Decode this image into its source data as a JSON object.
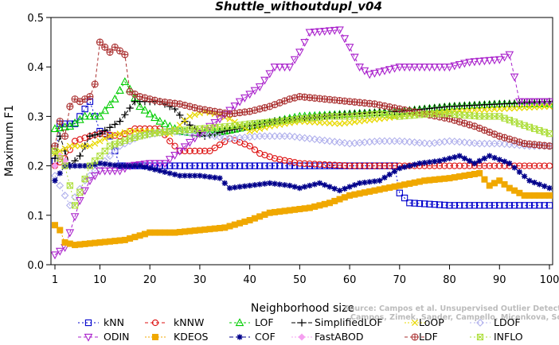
{
  "chart_data": {
    "type": "line",
    "title": "Shuttle_withoutdupl_v04",
    "xlabel": "Neighborhood size",
    "ylabel": "Maximum F1",
    "xlim": [
      1,
      100
    ],
    "ylim": [
      0.0,
      0.5
    ],
    "xticks": [
      1,
      10,
      20,
      30,
      40,
      50,
      60,
      70,
      80,
      90,
      100
    ],
    "yticks": [
      0.0,
      0.1,
      0.2,
      0.3,
      0.4,
      0.5
    ],
    "xtick_labels": [
      "1",
      "10",
      "20",
      "30",
      "40",
      "50",
      "60",
      "70",
      "80",
      "90",
      "100"
    ],
    "ytick_labels": [
      "0.0",
      "0.1",
      "0.2",
      "0.3",
      "0.4",
      "0.5"
    ],
    "grid": false,
    "legend_position": "bottom",
    "watermark": [
      "Source: Campos et al. Unsupervised Outlier Detection. DAMI, 2015.",
      "Campos, Zimek, Sander, Campello, Micenkova, Schubert, Assent, Houle"
    ],
    "series": [
      {
        "name": "kNN",
        "color": "#0000cc",
        "marker": "square",
        "dash": "2,3",
        "points": [
          [
            1,
            0.21
          ],
          [
            2,
            0.285
          ],
          [
            5,
            0.285
          ],
          [
            6,
            0.3
          ],
          [
            8,
            0.33
          ],
          [
            9,
            0.3
          ],
          [
            10,
            0.27
          ],
          [
            12,
            0.26
          ],
          [
            14,
            0.2
          ],
          [
            20,
            0.2
          ],
          [
            40,
            0.2
          ],
          [
            60,
            0.2
          ],
          [
            69,
            0.2
          ],
          [
            70,
            0.145
          ],
          [
            72,
            0.125
          ],
          [
            80,
            0.12
          ],
          [
            90,
            0.12
          ],
          [
            100,
            0.12
          ]
        ]
      },
      {
        "name": "kNNW",
        "color": "#dd1111",
        "marker": "circle",
        "dash": "4,3",
        "points": [
          [
            1,
            0.2
          ],
          [
            3,
            0.215
          ],
          [
            5,
            0.25
          ],
          [
            8,
            0.26
          ],
          [
            10,
            0.265
          ],
          [
            14,
            0.26
          ],
          [
            17,
            0.275
          ],
          [
            22,
            0.275
          ],
          [
            24,
            0.25
          ],
          [
            26,
            0.23
          ],
          [
            32,
            0.23
          ],
          [
            36,
            0.255
          ],
          [
            40,
            0.24
          ],
          [
            42,
            0.225
          ],
          [
            45,
            0.215
          ],
          [
            50,
            0.205
          ],
          [
            60,
            0.2
          ],
          [
            80,
            0.2
          ],
          [
            100,
            0.2
          ]
        ]
      },
      {
        "name": "LOF",
        "color": "#00cc00",
        "marker": "triangle-up",
        "dash": "3,3",
        "points": [
          [
            1,
            0.275
          ],
          [
            4,
            0.28
          ],
          [
            7,
            0.3
          ],
          [
            10,
            0.3
          ],
          [
            13,
            0.335
          ],
          [
            15,
            0.37
          ],
          [
            16,
            0.355
          ],
          [
            18,
            0.32
          ],
          [
            22,
            0.29
          ],
          [
            26,
            0.27
          ],
          [
            30,
            0.265
          ],
          [
            35,
            0.27
          ],
          [
            40,
            0.28
          ],
          [
            45,
            0.29
          ],
          [
            50,
            0.3
          ],
          [
            60,
            0.305
          ],
          [
            70,
            0.31
          ],
          [
            80,
            0.32
          ],
          [
            90,
            0.325
          ],
          [
            100,
            0.325
          ]
        ]
      },
      {
        "name": "SimplifiedLOF",
        "color": "#000000",
        "marker": "plus",
        "dash": "5,2",
        "points": [
          [
            1,
            0.215
          ],
          [
            2,
            0.26
          ],
          [
            4,
            0.2
          ],
          [
            6,
            0.22
          ],
          [
            8,
            0.26
          ],
          [
            10,
            0.265
          ],
          [
            14,
            0.29
          ],
          [
            17,
            0.33
          ],
          [
            22,
            0.33
          ],
          [
            25,
            0.315
          ],
          [
            27,
            0.29
          ],
          [
            31,
            0.26
          ],
          [
            35,
            0.27
          ],
          [
            40,
            0.28
          ],
          [
            45,
            0.29
          ],
          [
            50,
            0.295
          ],
          [
            55,
            0.3
          ],
          [
            60,
            0.305
          ],
          [
            70,
            0.31
          ],
          [
            80,
            0.32
          ],
          [
            90,
            0.325
          ],
          [
            100,
            0.33
          ]
        ]
      },
      {
        "name": "LoOP",
        "color": "#e8d800",
        "marker": "x",
        "dash": "2,2",
        "points": [
          [
            1,
            0.225
          ],
          [
            4,
            0.24
          ],
          [
            8,
            0.24
          ],
          [
            12,
            0.26
          ],
          [
            16,
            0.27
          ],
          [
            20,
            0.27
          ],
          [
            24,
            0.265
          ],
          [
            28,
            0.3
          ],
          [
            31,
            0.31
          ],
          [
            33,
            0.305
          ],
          [
            36,
            0.295
          ],
          [
            40,
            0.27
          ],
          [
            44,
            0.28
          ],
          [
            50,
            0.29
          ],
          [
            58,
            0.285
          ],
          [
            62,
            0.29
          ],
          [
            70,
            0.3
          ],
          [
            80,
            0.31
          ],
          [
            90,
            0.315
          ],
          [
            100,
            0.32
          ]
        ]
      },
      {
        "name": "LDOF",
        "color": "#b0b0ec",
        "marker": "diamond",
        "dash": "2,3",
        "points": [
          [
            1,
            0.18
          ],
          [
            4,
            0.12
          ],
          [
            7,
            0.17
          ],
          [
            10,
            0.2
          ],
          [
            14,
            0.24
          ],
          [
            18,
            0.26
          ],
          [
            24,
            0.27
          ],
          [
            30,
            0.265
          ],
          [
            36,
            0.255
          ],
          [
            42,
            0.26
          ],
          [
            48,
            0.26
          ],
          [
            52,
            0.255
          ],
          [
            56,
            0.25
          ],
          [
            60,
            0.245
          ],
          [
            66,
            0.25
          ],
          [
            70,
            0.25
          ],
          [
            76,
            0.245
          ],
          [
            80,
            0.25
          ],
          [
            86,
            0.245
          ],
          [
            90,
            0.245
          ],
          [
            96,
            0.24
          ],
          [
            100,
            0.24
          ]
        ]
      },
      {
        "name": "ODIN",
        "color": "#aa22cc",
        "marker": "triangle-down",
        "dash": "4,3",
        "points": [
          [
            1,
            0.02
          ],
          [
            3,
            0.035
          ],
          [
            4,
            0.065
          ],
          [
            6,
            0.13
          ],
          [
            8,
            0.17
          ],
          [
            10,
            0.19
          ],
          [
            14,
            0.19
          ],
          [
            16,
            0.2
          ],
          [
            20,
            0.205
          ],
          [
            23,
            0.205
          ],
          [
            26,
            0.23
          ],
          [
            30,
            0.265
          ],
          [
            34,
            0.295
          ],
          [
            38,
            0.33
          ],
          [
            42,
            0.36
          ],
          [
            45,
            0.4
          ],
          [
            48,
            0.4
          ],
          [
            50,
            0.43
          ],
          [
            52,
            0.47
          ],
          [
            58,
            0.475
          ],
          [
            60,
            0.44
          ],
          [
            62,
            0.4
          ],
          [
            64,
            0.385
          ],
          [
            70,
            0.4
          ],
          [
            80,
            0.4
          ],
          [
            84,
            0.41
          ],
          [
            90,
            0.415
          ],
          [
            92,
            0.425
          ],
          [
            93,
            0.38
          ],
          [
            94,
            0.33
          ],
          [
            100,
            0.33
          ]
        ]
      },
      {
        "name": "KDEOS",
        "color": "#f0a800",
        "marker": "square-fill",
        "dash": "2,2",
        "points": [
          [
            1,
            0.08
          ],
          [
            2,
            0.07
          ],
          [
            3,
            0.045
          ],
          [
            5,
            0.04
          ],
          [
            10,
            0.045
          ],
          [
            15,
            0.05
          ],
          [
            20,
            0.065
          ],
          [
            25,
            0.065
          ],
          [
            30,
            0.07
          ],
          [
            35,
            0.075
          ],
          [
            40,
            0.09
          ],
          [
            44,
            0.105
          ],
          [
            48,
            0.11
          ],
          [
            52,
            0.115
          ],
          [
            56,
            0.125
          ],
          [
            60,
            0.14
          ],
          [
            65,
            0.15
          ],
          [
            70,
            0.16
          ],
          [
            75,
            0.17
          ],
          [
            80,
            0.175
          ],
          [
            86,
            0.185
          ],
          [
            88,
            0.16
          ],
          [
            90,
            0.17
          ],
          [
            92,
            0.155
          ],
          [
            95,
            0.14
          ],
          [
            100,
            0.14
          ]
        ]
      },
      {
        "name": "COF",
        "color": "#00008b",
        "marker": "star",
        "dash": "5,3",
        "points": [
          [
            1,
            0.17
          ],
          [
            3,
            0.2
          ],
          [
            5,
            0.2
          ],
          [
            8,
            0.2
          ],
          [
            10,
            0.205
          ],
          [
            14,
            0.2
          ],
          [
            18,
            0.2
          ],
          [
            22,
            0.19
          ],
          [
            26,
            0.18
          ],
          [
            30,
            0.18
          ],
          [
            34,
            0.175
          ],
          [
            36,
            0.155
          ],
          [
            40,
            0.16
          ],
          [
            44,
            0.165
          ],
          [
            48,
            0.16
          ],
          [
            50,
            0.155
          ],
          [
            54,
            0.165
          ],
          [
            58,
            0.15
          ],
          [
            62,
            0.165
          ],
          [
            66,
            0.17
          ],
          [
            70,
            0.195
          ],
          [
            74,
            0.205
          ],
          [
            78,
            0.21
          ],
          [
            82,
            0.22
          ],
          [
            85,
            0.205
          ],
          [
            88,
            0.22
          ],
          [
            92,
            0.205
          ],
          [
            96,
            0.17
          ],
          [
            100,
            0.155
          ]
        ]
      },
      {
        "name": "FastABOD",
        "color": "#f5a0f0",
        "marker": "diamond-fill",
        "dash": "2,2",
        "points": [
          [
            1,
            0.2
          ],
          [
            2,
            0.22
          ],
          [
            3,
            0.21
          ]
        ]
      },
      {
        "name": "LDF",
        "color": "#aa3030",
        "marker": "circle-plus",
        "dash": "4,3",
        "points": [
          [
            1,
            0.24
          ],
          [
            2,
            0.29
          ],
          [
            3,
            0.26
          ],
          [
            4,
            0.32
          ],
          [
            5,
            0.335
          ],
          [
            6,
            0.33
          ],
          [
            8,
            0.34
          ],
          [
            9,
            0.365
          ],
          [
            10,
            0.45
          ],
          [
            12,
            0.43
          ],
          [
            13,
            0.44
          ],
          [
            15,
            0.425
          ],
          [
            16,
            0.35
          ],
          [
            18,
            0.34
          ],
          [
            22,
            0.33
          ],
          [
            26,
            0.325
          ],
          [
            30,
            0.315
          ],
          [
            36,
            0.305
          ],
          [
            40,
            0.31
          ],
          [
            44,
            0.32
          ],
          [
            48,
            0.335
          ],
          [
            50,
            0.34
          ],
          [
            55,
            0.335
          ],
          [
            60,
            0.33
          ],
          [
            65,
            0.325
          ],
          [
            70,
            0.315
          ],
          [
            75,
            0.305
          ],
          [
            80,
            0.295
          ],
          [
            85,
            0.28
          ],
          [
            90,
            0.26
          ],
          [
            95,
            0.245
          ],
          [
            100,
            0.24
          ]
        ]
      },
      {
        "name": "INFLO",
        "color": "#aadd33",
        "marker": "star-square",
        "dash": "2,3",
        "points": [
          [
            1,
            0.23
          ],
          [
            3,
            0.2
          ],
          [
            5,
            0.12
          ],
          [
            8,
            0.2
          ],
          [
            12,
            0.24
          ],
          [
            16,
            0.255
          ],
          [
            20,
            0.265
          ],
          [
            24,
            0.27
          ],
          [
            30,
            0.275
          ],
          [
            36,
            0.28
          ],
          [
            40,
            0.285
          ],
          [
            46,
            0.29
          ],
          [
            50,
            0.295
          ],
          [
            56,
            0.3
          ],
          [
            60,
            0.3
          ],
          [
            66,
            0.305
          ],
          [
            70,
            0.3
          ],
          [
            76,
            0.305
          ],
          [
            80,
            0.305
          ],
          [
            86,
            0.3
          ],
          [
            90,
            0.3
          ],
          [
            94,
            0.285
          ],
          [
            97,
            0.275
          ],
          [
            100,
            0.265
          ]
        ]
      }
    ]
  }
}
